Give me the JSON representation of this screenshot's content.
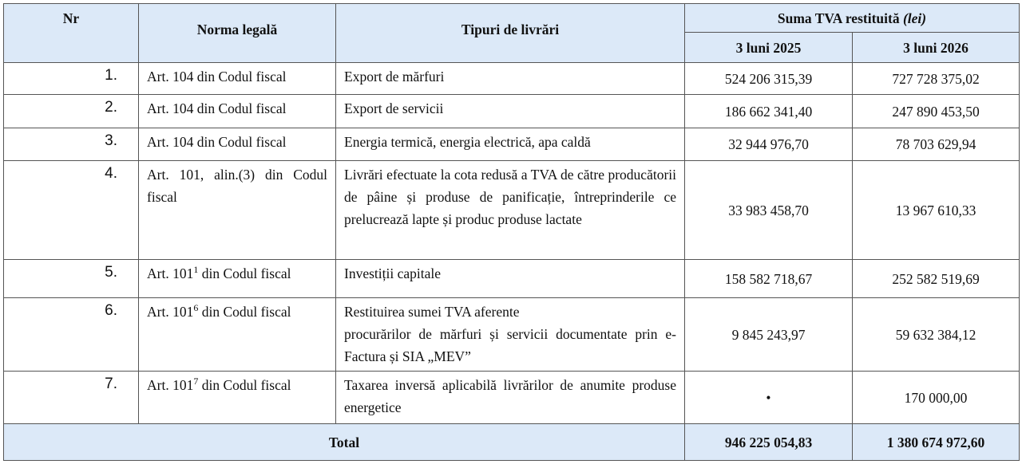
{
  "table": {
    "header": {
      "nr": "Nr",
      "norma": "Norma legală",
      "tipuri": "Tipuri de livrări",
      "suma": "Suma TVA restituită",
      "suma_unit": "(lei)",
      "periods": [
        "3 luni 2025",
        "3 luni 2026"
      ]
    },
    "rows": [
      {
        "nr": "1.",
        "norma": {
          "main": "Art. 104 din Codul fiscal"
        },
        "tipuri": [
          "Export de mărfuri"
        ],
        "values": [
          "524 206 315,39",
          "727 728 375,02"
        ]
      },
      {
        "nr": "2.",
        "norma": {
          "main": "Art. 104 din Codul fiscal"
        },
        "tipuri": [
          "Export de servicii"
        ],
        "values": [
          "186 662 341,40",
          "247 890 453,50"
        ]
      },
      {
        "nr": "3.",
        "norma": {
          "main": "Art. 104 din Codul fiscal"
        },
        "tipuri": [
          "Energia termică, energia electrică, apa caldă"
        ],
        "values": [
          "32 944 976,70",
          "78 703 629,94"
        ]
      },
      {
        "nr": "4.",
        "norma": {
          "main": "Art. 101, alin.(3) din Codul fiscal"
        },
        "tipuri": [
          "Livrări efectuate la cota redusă a TVA de către producătorii de pâine și produse de panificație, întreprinderile ce prelucrează lapte și produc produse lactate"
        ],
        "values": [
          "33 983 458,70",
          "13 967 610,33"
        ]
      },
      {
        "nr": "5.",
        "norma": {
          "main": "Art. 101",
          "sup": "1",
          "tail": "din Codul fiscal"
        },
        "tipuri": [
          "Investiții capitale"
        ],
        "values": [
          "158 582 718,67",
          "252 582 519,69"
        ]
      },
      {
        "nr": "6.",
        "norma": {
          "main": "Art. 101",
          "sup": "6",
          "tail": "din Codul fiscal"
        },
        "tipuri": [
          "Restituirea sumei TVA aferente",
          "procurărilor de mărfuri și servicii documentate prin e-Factura și SIA „MEV”"
        ],
        "values": [
          "9 845 243,97",
          "59 632 384,12"
        ]
      },
      {
        "nr": "7.",
        "norma": {
          "main": "Art. 101",
          "sup": "7",
          "tail": "din Codul fiscal"
        },
        "tipuri": [
          "Taxarea inversă aplicabilă livrărilor de anumite produse energetice"
        ],
        "values": [
          "•",
          "170 000,00"
        ]
      }
    ],
    "total": {
      "label": "Total",
      "values": [
        "946 225 054,83",
        "1 380 674 972,60"
      ]
    }
  }
}
